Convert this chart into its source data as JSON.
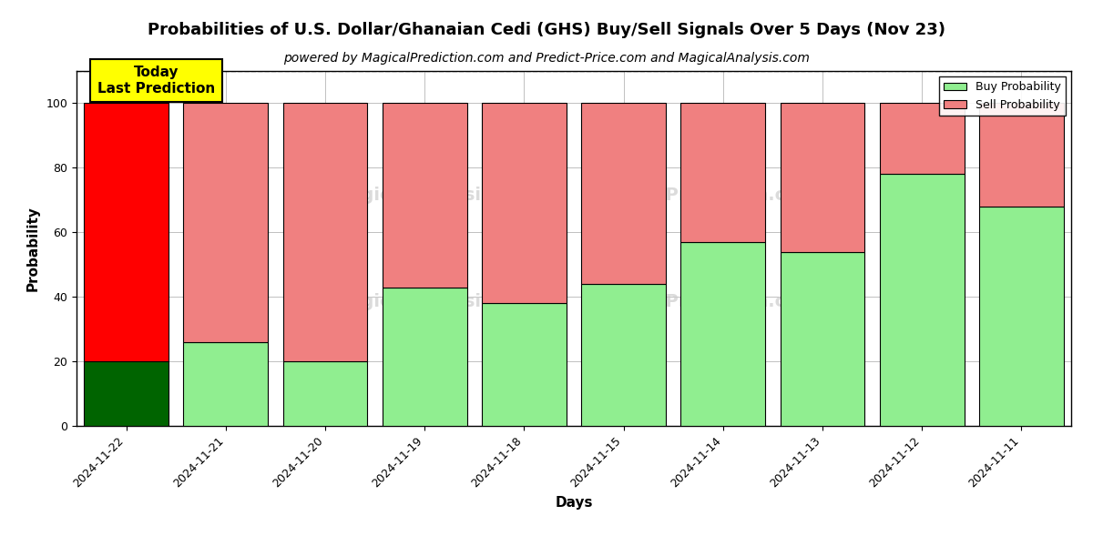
{
  "title": "Probabilities of U.S. Dollar/Ghanaian Cedi (GHS) Buy/Sell Signals Over 5 Days (Nov 23)",
  "subtitle": "powered by MagicalPrediction.com and Predict-Price.com and MagicalAnalysis.com",
  "xlabel": "Days",
  "ylabel": "Probability",
  "categories": [
    "2024-11-22",
    "2024-11-21",
    "2024-11-20",
    "2024-11-19",
    "2024-11-18",
    "2024-11-15",
    "2024-11-14",
    "2024-11-13",
    "2024-11-12",
    "2024-11-11"
  ],
  "buy_values": [
    20,
    26,
    20,
    43,
    38,
    44,
    57,
    54,
    78,
    68
  ],
  "sell_values": [
    80,
    74,
    80,
    57,
    62,
    56,
    43,
    46,
    22,
    32
  ],
  "buy_color_today": "#006400",
  "sell_color_today": "#ff0000",
  "buy_color_rest": "#90EE90",
  "sell_color_rest": "#F08080",
  "bar_edge_color": "black",
  "bar_edge_width": 0.8,
  "ylim": [
    0,
    110
  ],
  "yticks": [
    0,
    20,
    40,
    60,
    80,
    100
  ],
  "dashed_line_y": 110,
  "dashed_line_color": "gray",
  "grid_color": "gray",
  "grid_alpha": 0.5,
  "annotation_text": "Today\nLast Prediction",
  "annotation_bg_color": "#FFFF00",
  "annotation_border_color": "#000000",
  "legend_buy_label": "Buy Probability",
  "legend_sell_label": "Sell Probability",
  "title_fontsize": 13,
  "subtitle_fontsize": 10,
  "axis_label_fontsize": 11,
  "tick_fontsize": 9,
  "bar_width": 0.85
}
